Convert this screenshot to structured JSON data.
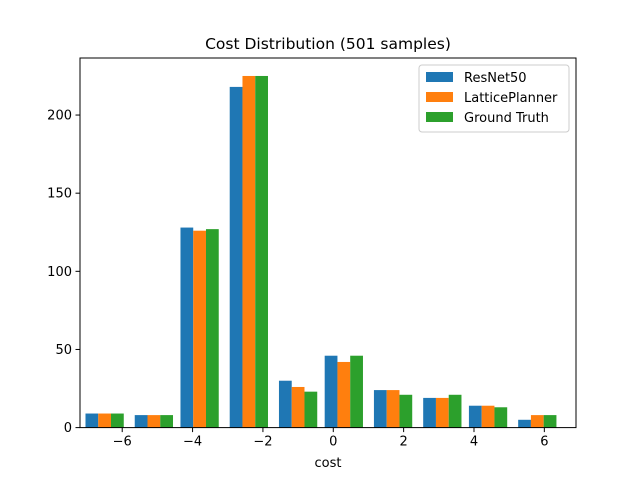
{
  "chart_data": {
    "type": "bar",
    "title": "Cost Distribution (501 samples)",
    "xlabel": "cost",
    "ylabel": "",
    "categories": [
      -6.5,
      -5.1,
      -3.8,
      -2.4,
      -1.0,
      0.3,
      1.7,
      3.1,
      4.4,
      5.8
    ],
    "series": [
      {
        "name": "ResNet50",
        "color": "#1f77b4",
        "values": [
          9,
          8,
          128,
          218,
          30,
          46,
          24,
          19,
          14,
          5
        ]
      },
      {
        "name": "LatticePlanner",
        "color": "#ff7f0e",
        "values": [
          9,
          8,
          126,
          225,
          26,
          42,
          24,
          19,
          14,
          8
        ]
      },
      {
        "name": "Ground Truth",
        "color": "#2ca02c",
        "values": [
          9,
          8,
          127,
          225,
          23,
          46,
          21,
          21,
          13,
          8
        ]
      }
    ],
    "xticks": [
      -6,
      -4,
      -2,
      0,
      2,
      4,
      6
    ],
    "xtick_labels": [
      "−6",
      "−4",
      "−2",
      "0",
      "2",
      "4",
      "6"
    ],
    "yticks": [
      0,
      50,
      100,
      150,
      200
    ],
    "ytick_labels": [
      "0",
      "50",
      "100",
      "150",
      "200"
    ],
    "xlim": [
      -7.2,
      6.9
    ],
    "ylim": [
      0,
      236.5
    ],
    "bin_width": 1.36,
    "legend_position": "upper right",
    "grid": false
  }
}
